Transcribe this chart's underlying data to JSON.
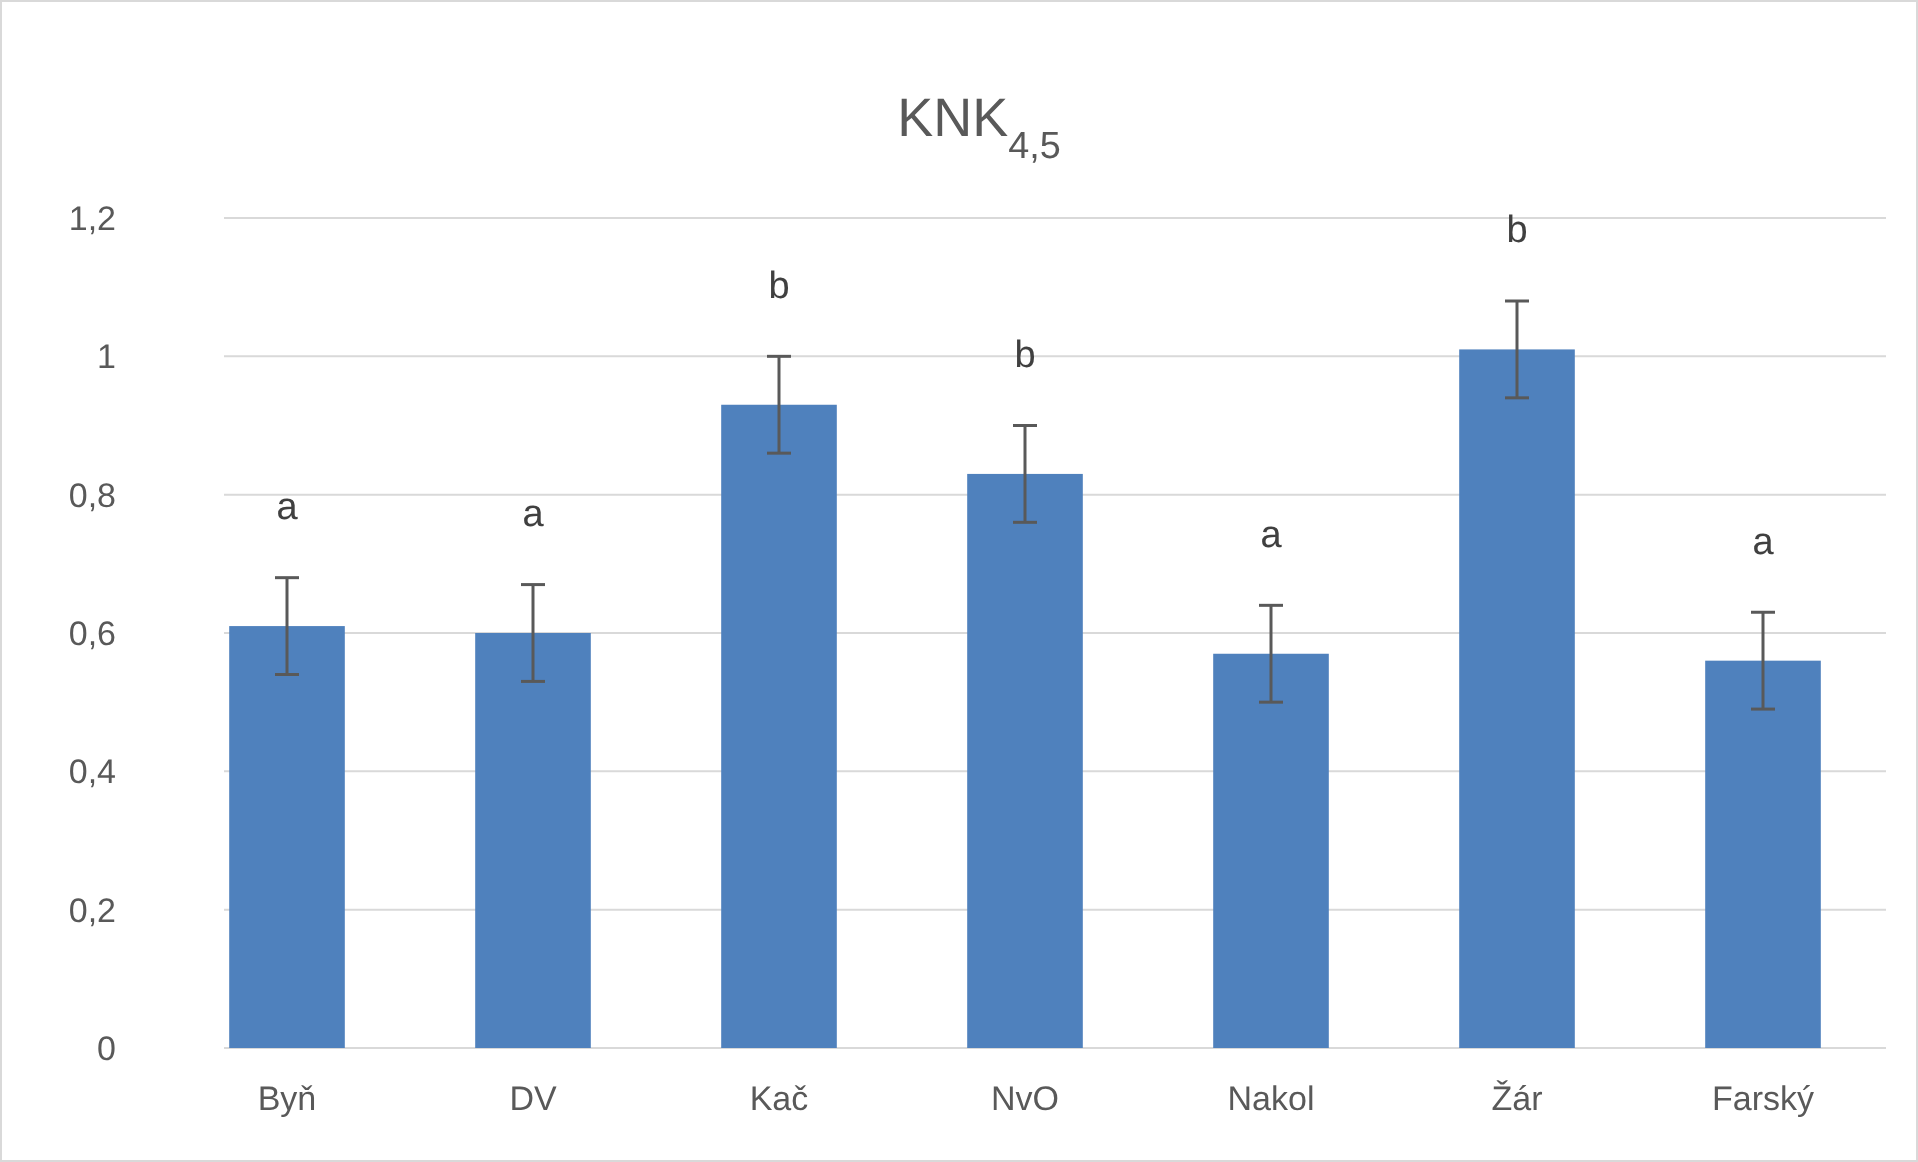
{
  "chart_data": {
    "type": "bar",
    "title": "KNK$_{4,5}$",
    "categories": [
      "Byň",
      "DV",
      "Kač",
      "NvO",
      "Nakol",
      "Žár",
      "Farský"
    ],
    "values": [
      0.61,
      0.6,
      0.93,
      0.83,
      0.57,
      1.01,
      0.56
    ],
    "errors": [
      0.07,
      0.07,
      0.07,
      0.07,
      0.07,
      0.07,
      0.07
    ],
    "color": "#4f81bd",
    "ylim": [
      0,
      1.2
    ],
    "yticks": [
      {
        "value": 0,
        "label": "0"
      },
      {
        "value": 0.2,
        "label": "0,2"
      },
      {
        "value": 0.4,
        "label": "0,4"
      },
      {
        "value": 0.6,
        "label": "0,6"
      },
      {
        "value": 0.8,
        "label": "0,8"
      },
      {
        "value": 1,
        "label": "1"
      },
      {
        "value": 1.2,
        "label": "1,2"
      }
    ],
    "grid": "y",
    "annotations": [
      "a",
      "a",
      "b",
      "b",
      "a",
      "b",
      "a"
    ]
  }
}
